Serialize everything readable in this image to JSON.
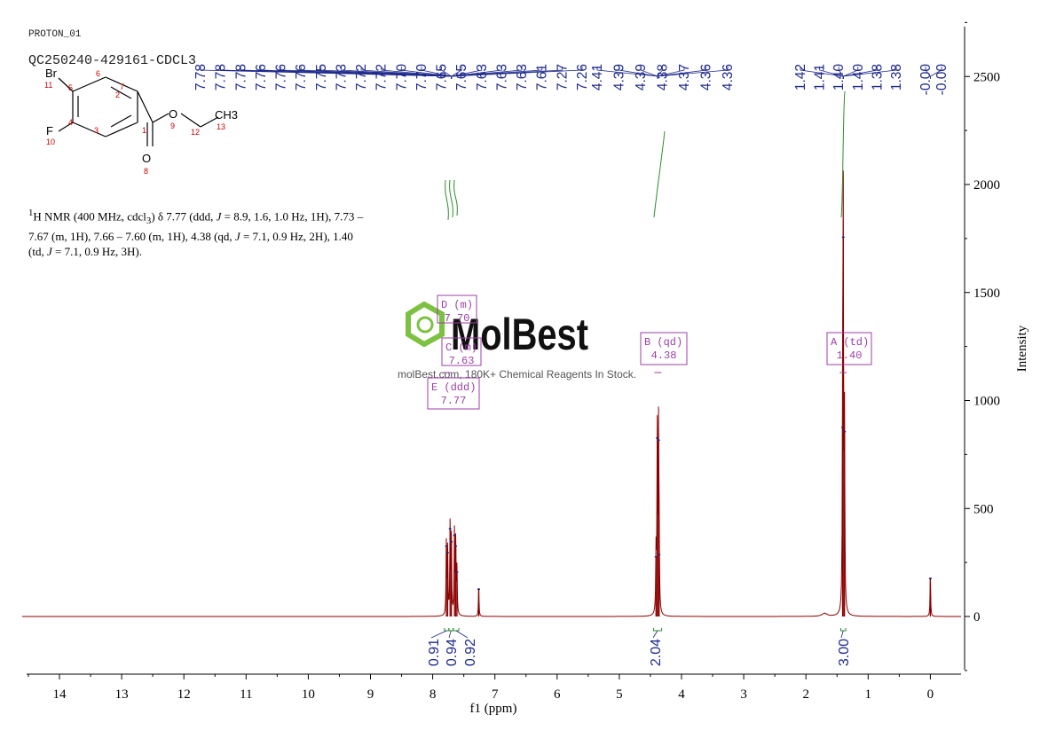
{
  "header": {
    "experiment": "PROTON_01",
    "sample_id": "QC250240-429161-CDCL3"
  },
  "structure": {
    "atoms": [
      "Br",
      "F",
      "O",
      "O",
      "CH3"
    ],
    "numbers": [
      "11",
      "5",
      "6",
      "7",
      "4",
      "10",
      "3",
      "2",
      "1",
      "9",
      "12",
      "13",
      "8"
    ]
  },
  "description": {
    "parts": [
      "1",
      "H NMR (400 MHz, cdcl",
      "3",
      ") δ 7.77 (ddd, ",
      "J",
      " = 8.9, 1.6, 1.0 Hz, 1H), 7.73 – 7.67 (m, 1H), 7.66 – 7.60 (m, 1H), 4.38 (qd, ",
      "J",
      " = 7.1, 0.9 Hz, 2H), 1.40 (td, ",
      "J",
      " = 7.1, 0.9 Hz, 3H)."
    ]
  },
  "watermark": {
    "brand": "MolBest",
    "tagline": "molBest.com, 180K+ Chemical Reagents In Stock."
  },
  "colors": {
    "spectrum": "#8b0000",
    "peak_labels": "#1f2a8c",
    "integral_curve": "#2e8b2e",
    "multiplet_box": "#9c3fa6",
    "watermark_green": "#7dc142"
  },
  "chart_data": {
    "type": "line",
    "title": "",
    "xlabel": "f1 (ppm)",
    "ylabel": "Intensity",
    "xlim": [
      14.6,
      -0.5
    ],
    "x_reversed": true,
    "ylim": [
      -270,
      2780
    ],
    "x_ticks": [
      "14",
      "13",
      "12",
      "11",
      "10",
      "9",
      "8",
      "7",
      "6",
      "5",
      "4",
      "3",
      "2",
      "1",
      "0"
    ],
    "y_ticks": [
      "0",
      "500",
      "1000",
      "1500",
      "2000",
      "2500"
    ],
    "peaks": [
      {
        "ppm": 7.78,
        "height": 330
      },
      {
        "ppm": 7.76,
        "height": 300
      },
      {
        "ppm": 7.72,
        "height": 410
      },
      {
        "ppm": 7.7,
        "height": 350
      },
      {
        "ppm": 7.65,
        "height": 380
      },
      {
        "ppm": 7.63,
        "height": 330
      },
      {
        "ppm": 7.61,
        "height": 210
      },
      {
        "ppm": 7.26,
        "height": 130
      },
      {
        "ppm": 4.41,
        "height": 280
      },
      {
        "ppm": 4.39,
        "height": 830
      },
      {
        "ppm": 4.37,
        "height": 820
      },
      {
        "ppm": 4.36,
        "height": 290
      },
      {
        "ppm": 1.41,
        "height": 880
      },
      {
        "ppm": 1.4,
        "height": 1760
      },
      {
        "ppm": 1.38,
        "height": 860
      },
      {
        "ppm": 0.0,
        "height": 180
      }
    ],
    "peak_labels": [
      "7.78",
      "7.78",
      "7.78",
      "7.76",
      "7.76",
      "7.76",
      "7.75",
      "7.73",
      "7.72",
      "7.72",
      "7.70",
      "7.70",
      "7.65",
      "7.65",
      "7.63",
      "7.63",
      "7.63",
      "7.61",
      "7.27",
      "7.26",
      "4.41",
      "4.39",
      "4.39",
      "4.38",
      "4.37",
      "4.36",
      "4.36",
      "1.42",
      "1.41",
      "1.40",
      "1.40",
      "1.38",
      "1.38",
      "-0.00",
      "-0.00"
    ],
    "integrals": [
      {
        "label": "0.91",
        "from": 7.81,
        "to": 7.74
      },
      {
        "label": "0.94",
        "from": 7.74,
        "to": 7.67
      },
      {
        "label": "0.92",
        "from": 7.67,
        "to": 7.58
      },
      {
        "label": "2.04",
        "from": 4.45,
        "to": 4.32
      },
      {
        "label": "3.00",
        "from": 1.44,
        "to": 1.36
      }
    ],
    "multiplets": [
      {
        "letter": "D (m)",
        "shift": "7.70"
      },
      {
        "letter": "C (m)",
        "shift": "7.63"
      },
      {
        "letter": "E (ddd)",
        "shift": "7.77"
      },
      {
        "letter": "B (qd)",
        "shift": "4.38"
      },
      {
        "letter": "A (td)",
        "shift": "1.40"
      }
    ]
  }
}
